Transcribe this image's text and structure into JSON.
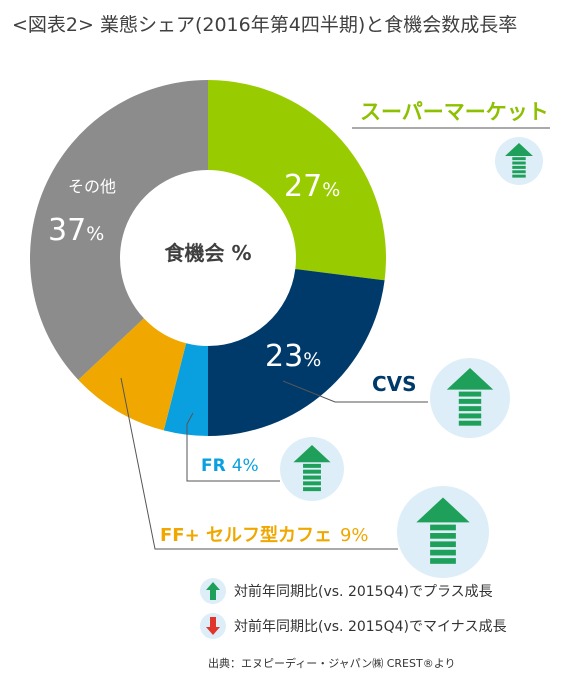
{
  "title": "<図表2> 業態シェア(2016年第4四半期)と食機会数成長率",
  "chart_data": {
    "type": "pie",
    "variant": "donut",
    "center_label": "食機会 %",
    "unit": "%",
    "slices": [
      {
        "name": "スーパーマーケット",
        "value": 27,
        "color": "#99cc00",
        "growth": "up",
        "growth_size": "small"
      },
      {
        "name": "CVS",
        "value": 23,
        "color": "#003a6b",
        "growth": "up",
        "growth_size": "large"
      },
      {
        "name": "FR",
        "value": 4,
        "color": "#0aa0df",
        "growth": "up",
        "growth_size": "small"
      },
      {
        "name": "FF+ セルフ型カフェ",
        "value": 9,
        "color": "#f0a800",
        "growth": "up",
        "growth_size": "large"
      },
      {
        "name": "その他",
        "value": 37,
        "color": "#8c8c8c"
      }
    ],
    "labels": {
      "supermarket": {
        "name": "スーパーマーケット",
        "value": "27",
        "unit": "%"
      },
      "cvs": {
        "name": "CVS",
        "value": "23",
        "unit": "%"
      },
      "fr": {
        "name": "FR",
        "value": "4%"
      },
      "ff": {
        "name": "FF+ セルフ型カフェ",
        "value": "9%"
      },
      "other": {
        "name": "その他",
        "value": "37",
        "unit": "%"
      }
    }
  },
  "legend": [
    {
      "icon": "green-up-arrow-icon",
      "text": "対前年同期比(vs. 2015Q4)でプラス成長"
    },
    {
      "icon": "red-down-arrow-icon",
      "text": "対前年同期比(vs. 2015Q4)でマイナス成長"
    }
  ],
  "source": "出典：エヌピーディー・ジャパン㈱ CREST®より",
  "colors": {
    "arrow_up": "#1fa05a",
    "arrow_down": "#e0352b",
    "circle_bg": "#ddeef8",
    "leader": "#555555"
  }
}
